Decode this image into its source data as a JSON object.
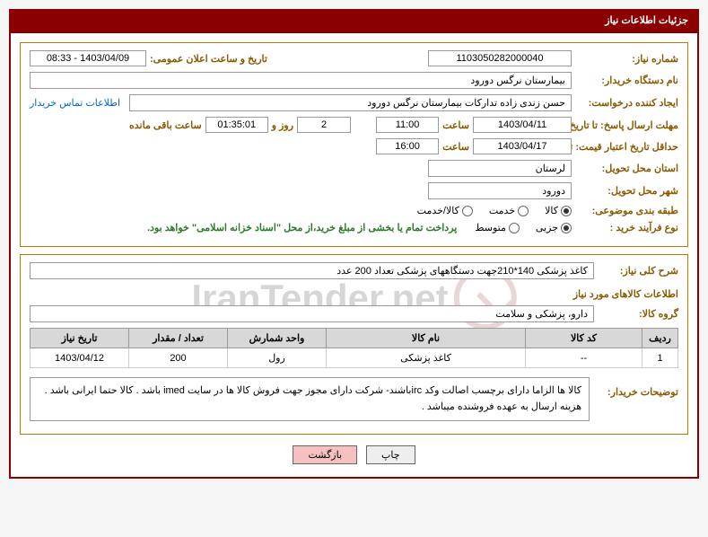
{
  "header": {
    "title": "جزئیات اطلاعات نیاز"
  },
  "fields": {
    "need_no_label": "شماره نیاز:",
    "need_no": "1103050282000040",
    "announce_label": "تاریخ و ساعت اعلان عمومی:",
    "announce_value": "1403/04/09 - 08:33",
    "buyer_org_label": "نام دستگاه خریدار:",
    "buyer_org": "بیمارستان نرگس دورود",
    "requester_label": "ایجاد کننده درخواست:",
    "requester": "حسن  زندی زاده  تدارکات بیمارستان نرگس دورود",
    "contact_link": "اطلاعات تماس خریدار",
    "deadline_reply_label": "مهلت ارسال پاسخ: تا تاریخ:",
    "deadline_reply_date": "1403/04/11",
    "time_label": "ساعت",
    "deadline_reply_time": "11:00",
    "days_remaining": "2",
    "days_and": "روز و",
    "time_remaining": "01:35:01",
    "time_remaining_label": "ساعت باقی مانده",
    "validity_label": "حداقل تاریخ اعتبار قیمت: تا تاریخ:",
    "validity_date": "1403/04/17",
    "validity_time": "16:00",
    "delivery_province_label": "استان محل تحویل:",
    "delivery_province": "لرستان",
    "delivery_city_label": "شهر محل تحویل:",
    "delivery_city": "دورود",
    "category_label": "طبقه بندی موضوعی:",
    "cat_goods": "کالا",
    "cat_service": "خدمت",
    "cat_goods_service": "کالا/خدمت",
    "process_label": "نوع فرآیند خرید :",
    "proc_small": "جزیی",
    "proc_medium": "متوسط",
    "payment_note": "پرداخت تمام یا بخشی از مبلغ خرید،از محل \"اسناد خزانه اسلامی\" خواهد بود.",
    "overall_label": "شرح کلی نیاز:",
    "overall_desc": "کاغذ پزشکی 140*210جهت دستگاههای پزشکی تعداد 200 عدد",
    "items_section": "اطلاعات کالاهای مورد نیاز",
    "group_label": "گروه کالا:",
    "group_value": "دارو، پزشکی و سلامت",
    "buyer_notes_label": "توضیحات خریدار:",
    "buyer_notes": "کالا ها الزاما دارای برچسب اصالت وکد ircباشند- شرکت دارای مجوز جهت فروش کالا ها در سایت imed باشد . کالا حتما ایرانی باشد . هزینه ارسال به عهده فروشنده میباشد ."
  },
  "table": {
    "headers": [
      "ردیف",
      "کد کالا",
      "نام کالا",
      "واحد شمارش",
      "تعداد / مقدار",
      "تاریخ نیاز"
    ],
    "rows": [
      [
        "1",
        "--",
        "کاغذ پزشکی",
        "رول",
        "200",
        "1403/04/12"
      ]
    ],
    "col_widths": [
      "40px",
      "130px",
      "auto",
      "110px",
      "110px",
      "110px"
    ]
  },
  "buttons": {
    "print": "چاپ",
    "back": "بازگشت"
  },
  "colors": {
    "header_bg": "#8a0000",
    "outer_border": "#8a0000",
    "inner_border": "#b97a00",
    "label_color": "#8a5a00",
    "th_bg": "#d8d8d8"
  }
}
